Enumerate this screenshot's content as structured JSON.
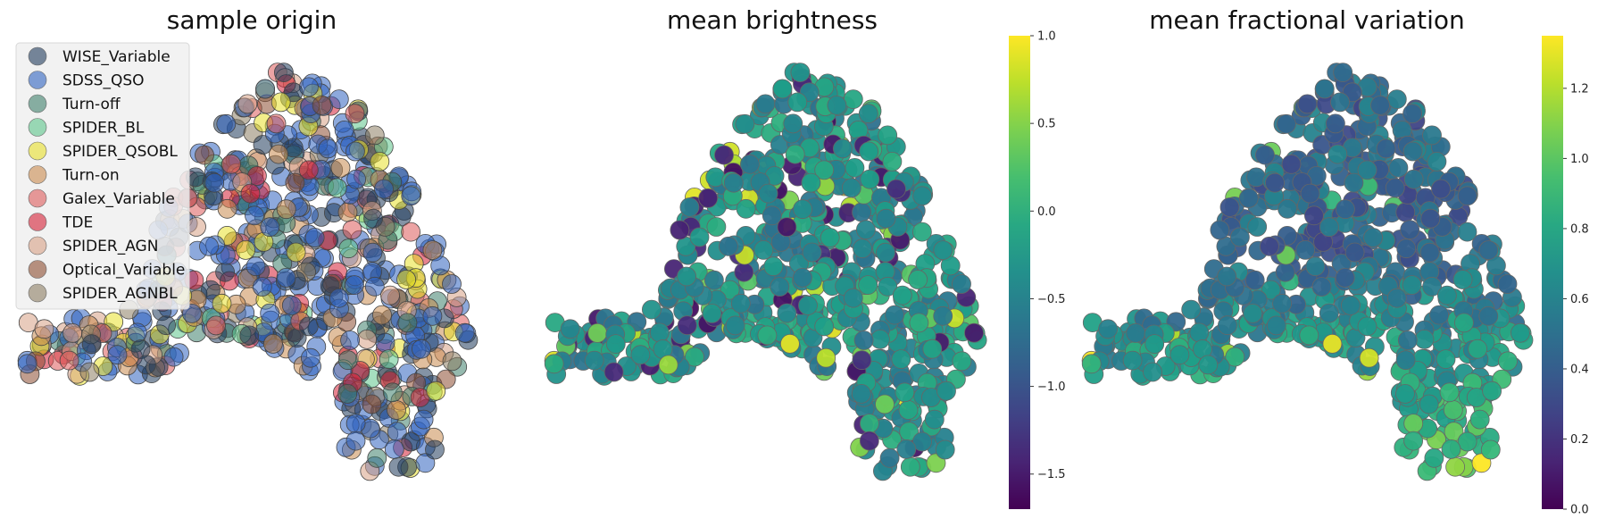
{
  "chart_data": [
    {
      "type": "scatter",
      "title": "sample origin",
      "xlabel": "",
      "ylabel": "",
      "grid": false,
      "legend_placement": "top-left",
      "marker_alpha": 0.55,
      "series": [
        {
          "name": "WISE_Variable",
          "color": "#1f3b5b"
        },
        {
          "name": "SDSS_QSO",
          "color": "#2f62c0"
        },
        {
          "name": "Turn-off",
          "color": "#3e7f6b"
        },
        {
          "name": "SPIDER_BL",
          "color": "#5cc48a"
        },
        {
          "name": "SPIDER_QSOBL",
          "color": "#e8e02a"
        },
        {
          "name": "Turn-on",
          "color": "#c98a4e"
        },
        {
          "name": "Galex_Variable",
          "color": "#dc5a5a"
        },
        {
          "name": "TDE",
          "color": "#d41f35"
        },
        {
          "name": "SPIDER_AGN",
          "color": "#d7a085"
        },
        {
          "name": "Optical_Variable",
          "color": "#8c4c31"
        },
        {
          "name": "SPIDER_AGNBL",
          "color": "#8c7d62"
        }
      ]
    },
    {
      "type": "scatter",
      "title": "mean brightness",
      "xlabel": "",
      "ylabel": "",
      "grid": false,
      "colormap": "viridis",
      "color_range": [
        -1.7,
        1.0
      ],
      "colorbar_ticks": [
        "1.0",
        "0.5",
        "0.0",
        "−0.5",
        "−1.0",
        "−1.5"
      ],
      "colorbar_tick_values": [
        1.0,
        0.5,
        0.0,
        -0.5,
        -1.0,
        -1.5
      ]
    },
    {
      "type": "scatter",
      "title": "mean fractional variation",
      "xlabel": "",
      "ylabel": "",
      "grid": false,
      "colormap": "viridis",
      "color_range": [
        0.0,
        1.35
      ],
      "colorbar_ticks": [
        "1.2",
        "1.0",
        "0.8",
        "0.6",
        "0.4",
        "0.2",
        "0.0"
      ],
      "colorbar_tick_values": [
        1.2,
        1.0,
        0.8,
        0.6,
        0.4,
        0.2,
        0.0
      ]
    }
  ]
}
